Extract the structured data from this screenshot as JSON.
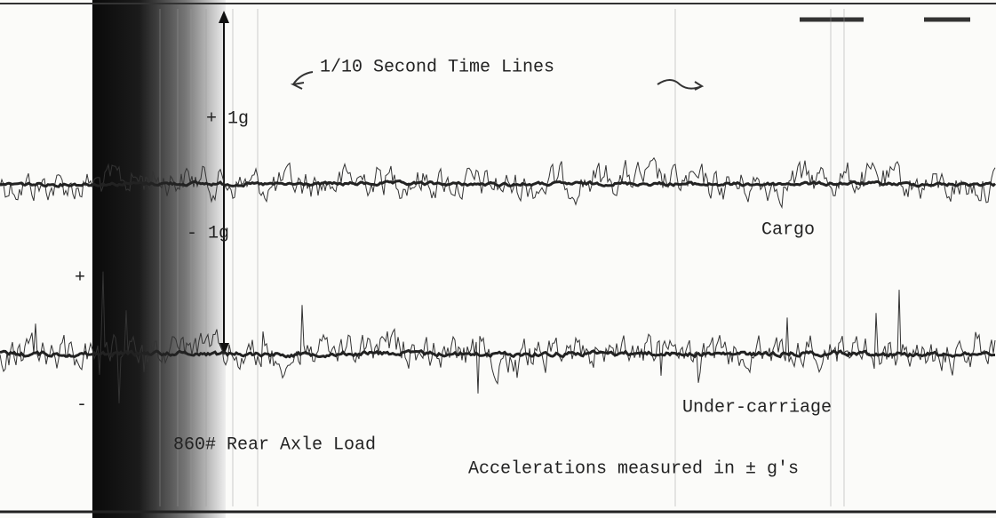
{
  "caption": "1/10 Second Time Lines",
  "scale": {
    "plus_one_g": "+ 1g",
    "minus_one_g": "- 1g",
    "plus": "+",
    "minus": "-"
  },
  "traces": {
    "cargo": "Cargo",
    "under_carriage": "Under-carriage"
  },
  "notes": {
    "load": "860# Rear Axle Load",
    "units": "Accelerations measured in ± g's"
  }
}
